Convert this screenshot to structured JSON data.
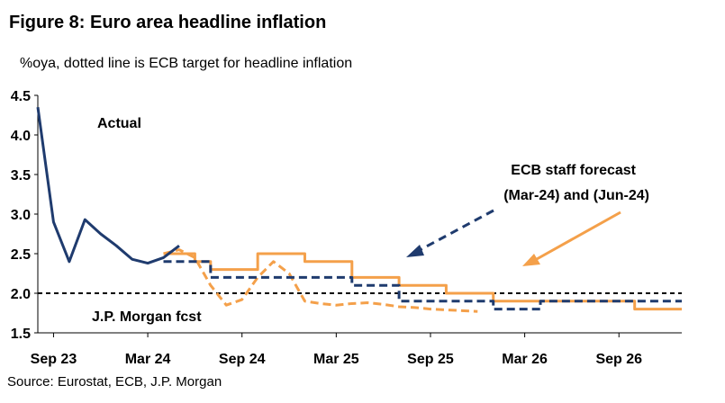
{
  "title": "Figure 8: Euro area headline inflation",
  "subtitle": "%oya, dotted line is ECB target for headline inflation",
  "source": "Source: Eurostat, ECB, J.P. Morgan",
  "colors": {
    "actual": "#1f3b6e",
    "jpm": "#f4a04a",
    "ecb_mar": "#f4a04a",
    "ecb_jun": "#1f3b6e",
    "target": "#000000"
  },
  "chart_data": {
    "type": "line",
    "ylim": [
      1.5,
      4.5
    ],
    "y_ticks": [
      "1.5",
      "2.0",
      "2.5",
      "3.0",
      "3.5",
      "4.0",
      "4.5"
    ],
    "x_ticks": [
      {
        "label": "Sep 23",
        "x": "2023-09"
      },
      {
        "label": "Mar 24",
        "x": "2024-03"
      },
      {
        "label": "Sep 24",
        "x": "2024-09"
      },
      {
        "label": "Mar 25",
        "x": "2025-03"
      },
      {
        "label": "Sep 25",
        "x": "2025-09"
      },
      {
        "label": "Mar 26",
        "x": "2026-03"
      },
      {
        "label": "Sep 26",
        "x": "2026-09"
      }
    ],
    "xlim": [
      "2023-08",
      "2027-01"
    ],
    "target": 2.0,
    "series": [
      {
        "key": "actual",
        "style": "solid",
        "x": [
          "2023-08",
          "2023-09",
          "2023-10",
          "2023-11",
          "2023-12",
          "2024-01",
          "2024-02",
          "2024-03",
          "2024-04",
          "2024-05"
        ],
        "y": [
          4.35,
          2.9,
          2.4,
          2.93,
          2.75,
          2.6,
          2.43,
          2.38,
          2.45,
          2.6
        ]
      },
      {
        "key": "jpm",
        "style": "solid",
        "x": [
          "2024-04",
          "2024-05",
          "2024-06",
          "2024-07",
          "2024-08",
          "2024-09",
          "2024-10",
          "2024-11",
          "2024-12",
          "2025-01",
          "2025-02",
          "2025-03",
          "2025-04",
          "2025-05",
          "2025-06",
          "2025-07",
          "2025-08",
          "2025-09",
          "2025-10",
          "2025-11",
          "2025-12",
          "2026-01",
          "2026-02",
          "2026-03",
          "2026-04",
          "2026-05",
          "2026-06",
          "2026-07",
          "2026-08",
          "2026-09",
          "2026-10",
          "2026-11",
          "2026-12"
        ],
        "y": [
          2.5,
          2.5,
          2.4,
          2.3,
          2.3,
          2.3,
          2.5,
          2.5,
          2.5,
          2.4,
          2.4,
          2.4,
          2.2,
          2.2,
          2.2,
          2.1,
          2.1,
          2.1,
          2.0,
          2.0,
          2.0,
          1.9,
          1.9,
          1.9,
          1.9,
          1.9,
          1.9,
          1.9,
          1.9,
          1.9,
          1.8,
          1.8,
          1.8
        ]
      },
      {
        "key": "ecb_jun",
        "style": "dashed",
        "x": [
          "2024-04",
          "2024-05",
          "2024-06",
          "2024-07",
          "2024-08",
          "2024-09",
          "2024-10",
          "2024-11",
          "2024-12",
          "2025-01",
          "2025-02",
          "2025-03",
          "2025-04",
          "2025-05",
          "2025-06",
          "2025-07",
          "2025-08",
          "2025-09",
          "2025-10",
          "2025-11",
          "2025-12",
          "2026-01",
          "2026-02",
          "2026-03",
          "2026-04",
          "2026-05",
          "2026-06",
          "2026-07",
          "2026-08",
          "2026-09",
          "2026-10",
          "2026-11",
          "2026-12"
        ],
        "y": [
          2.4,
          2.4,
          2.4,
          2.2,
          2.2,
          2.2,
          2.2,
          2.2,
          2.2,
          2.2,
          2.2,
          2.2,
          2.1,
          2.1,
          2.1,
          1.9,
          1.9,
          1.9,
          1.9,
          1.9,
          1.9,
          1.8,
          1.8,
          1.8,
          1.9,
          1.9,
          1.9,
          1.9,
          1.9,
          1.9,
          1.9,
          1.9,
          1.9
        ]
      },
      {
        "key": "ecb_mar",
        "style": "dashed",
        "x": [
          "2024-04",
          "2024-05",
          "2024-06",
          "2024-07",
          "2024-08",
          "2024-09",
          "2024-10",
          "2024-11",
          "2024-12",
          "2025-01",
          "2025-02",
          "2025-03",
          "2025-04",
          "2025-05",
          "2025-06",
          "2025-07",
          "2025-08",
          "2025-09",
          "2025-10",
          "2025-11",
          "2025-12"
        ],
        "y": [
          2.5,
          2.55,
          2.45,
          2.1,
          1.85,
          1.92,
          2.2,
          2.4,
          2.25,
          1.9,
          1.87,
          1.85,
          1.87,
          1.88,
          1.86,
          1.83,
          1.82,
          1.8,
          1.79,
          1.78,
          1.77
        ]
      }
    ],
    "annotations": {
      "actual": "Actual",
      "ecb": "ECB staff forecast",
      "ecb_dates": "(Mar-24) and (Jun-24)",
      "jpm": "J.P. Morgan fcst"
    }
  }
}
